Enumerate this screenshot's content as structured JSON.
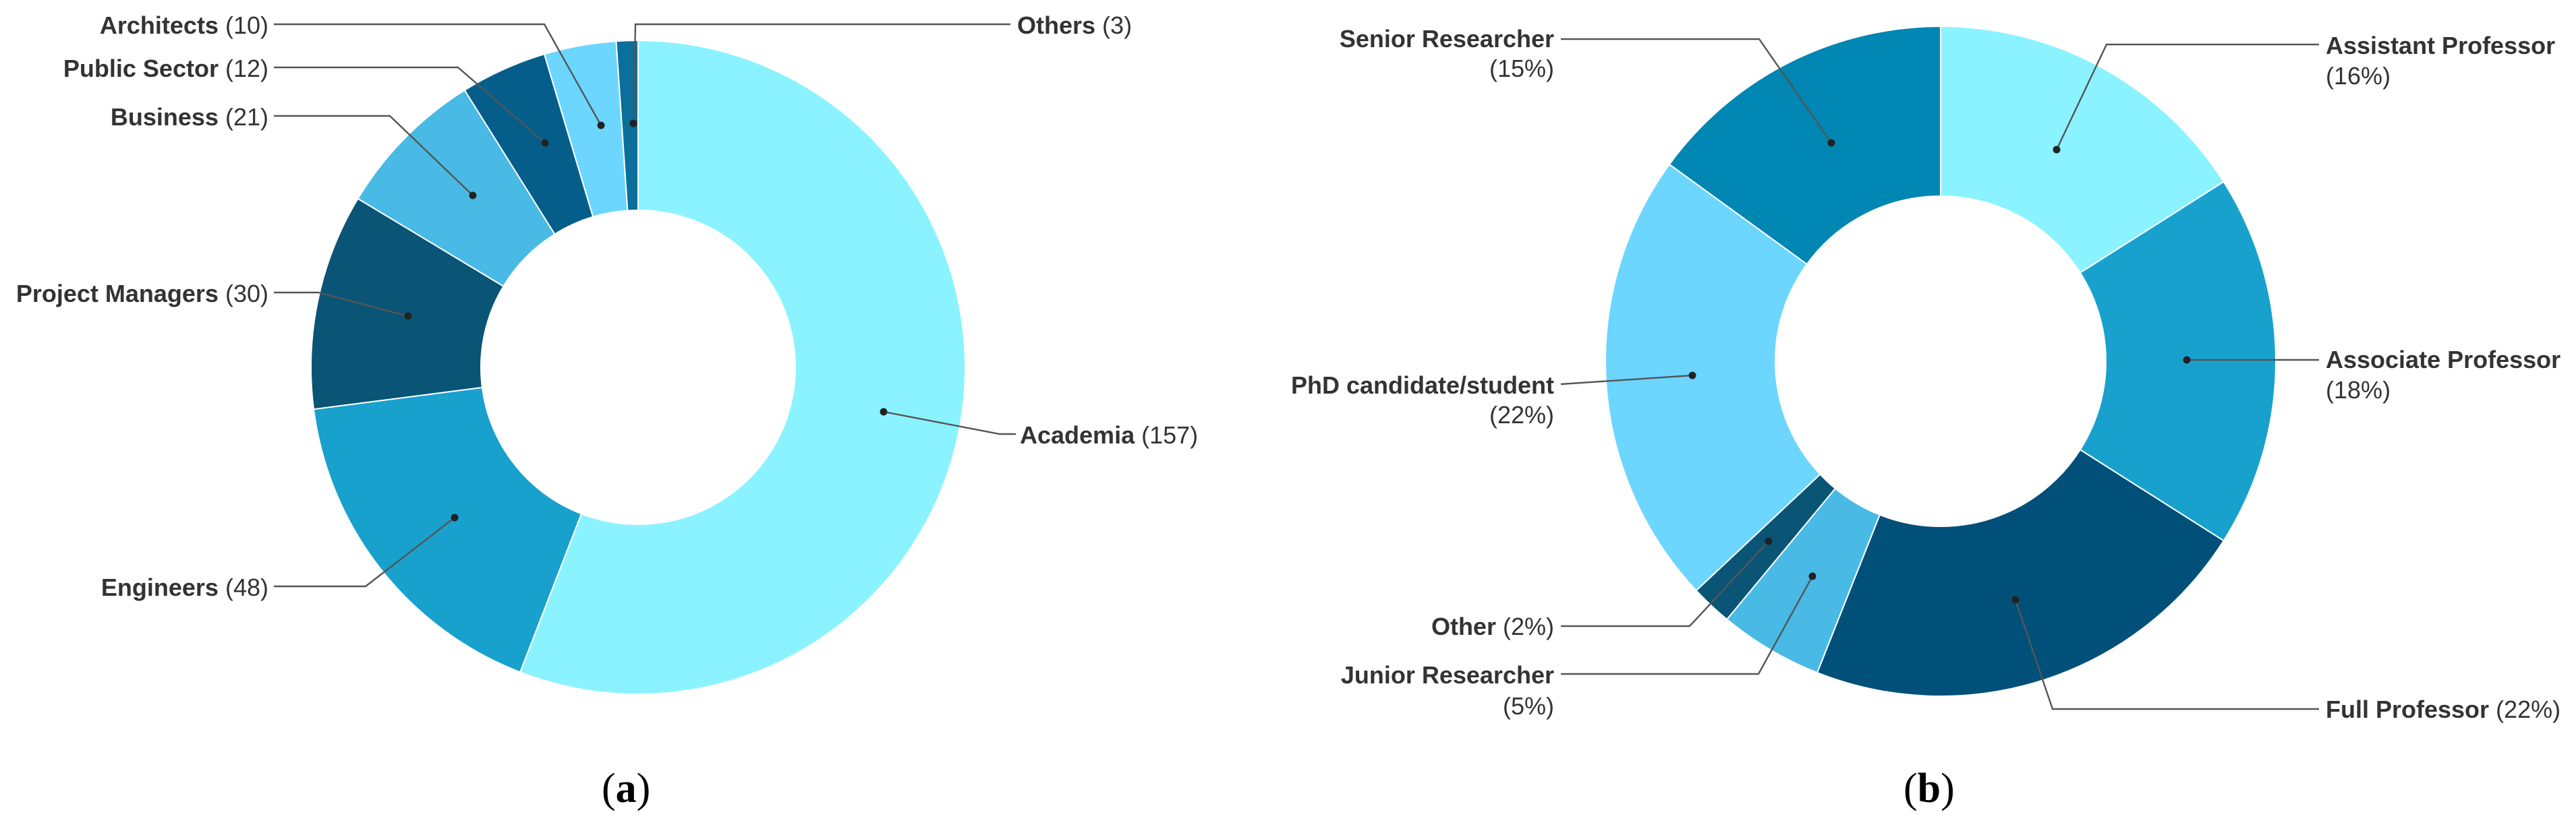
{
  "chart_data": [
    {
      "type": "pie",
      "subtype": "donut",
      "start_angle_deg": 0,
      "direction": "clockwise",
      "slices": [
        {
          "label": "Academia",
          "display_value": "157",
          "value": 157,
          "color": "#8AF3FF"
        },
        {
          "label": "Engineers",
          "display_value": "48",
          "value": 48,
          "color": "#18A1CD"
        },
        {
          "label": "Project Managers",
          "display_value": "30",
          "value": 30,
          "color": "#0A5476"
        },
        {
          "label": "Business",
          "display_value": "21",
          "value": 21,
          "color": "#48BAE5"
        },
        {
          "label": "Public Sector",
          "display_value": "12",
          "value": 12,
          "color": "#055E8A"
        },
        {
          "label": "Architects",
          "display_value": "10",
          "value": 10,
          "color": "#6CD6FF"
        },
        {
          "label": "Others",
          "display_value": "3",
          "value": 3,
          "color": "#0B6F9B"
        }
      ],
      "caption_open": "(",
      "caption_letter": "a",
      "caption_close": ")"
    },
    {
      "type": "pie",
      "subtype": "donut",
      "start_angle_deg": 0,
      "direction": "clockwise",
      "slices": [
        {
          "label": "Assistant Professor",
          "display_value": "16%",
          "value": 16,
          "color": "#8AF3FF"
        },
        {
          "label": "Associate Professor",
          "display_value": "18%",
          "value": 18,
          "color": "#18A1CD"
        },
        {
          "label": "Full Professor",
          "display_value": "22%",
          "value": 22,
          "color": "#00507A"
        },
        {
          "label": "Junior Researcher",
          "display_value": "5%",
          "value": 5,
          "color": "#48BAE5"
        },
        {
          "label": "Other",
          "display_value": "2%",
          "value": 2,
          "color": "#0A5476"
        },
        {
          "label": "PhD candidate/student",
          "display_value": "22%",
          "value": 22,
          "color": "#6CD6FF"
        },
        {
          "label": "Senior Researcher",
          "display_value": "15%",
          "value": 15,
          "color": "#0086B3"
        }
      ],
      "caption_open": "(",
      "caption_letter": "b",
      "caption_close": ")"
    }
  ]
}
